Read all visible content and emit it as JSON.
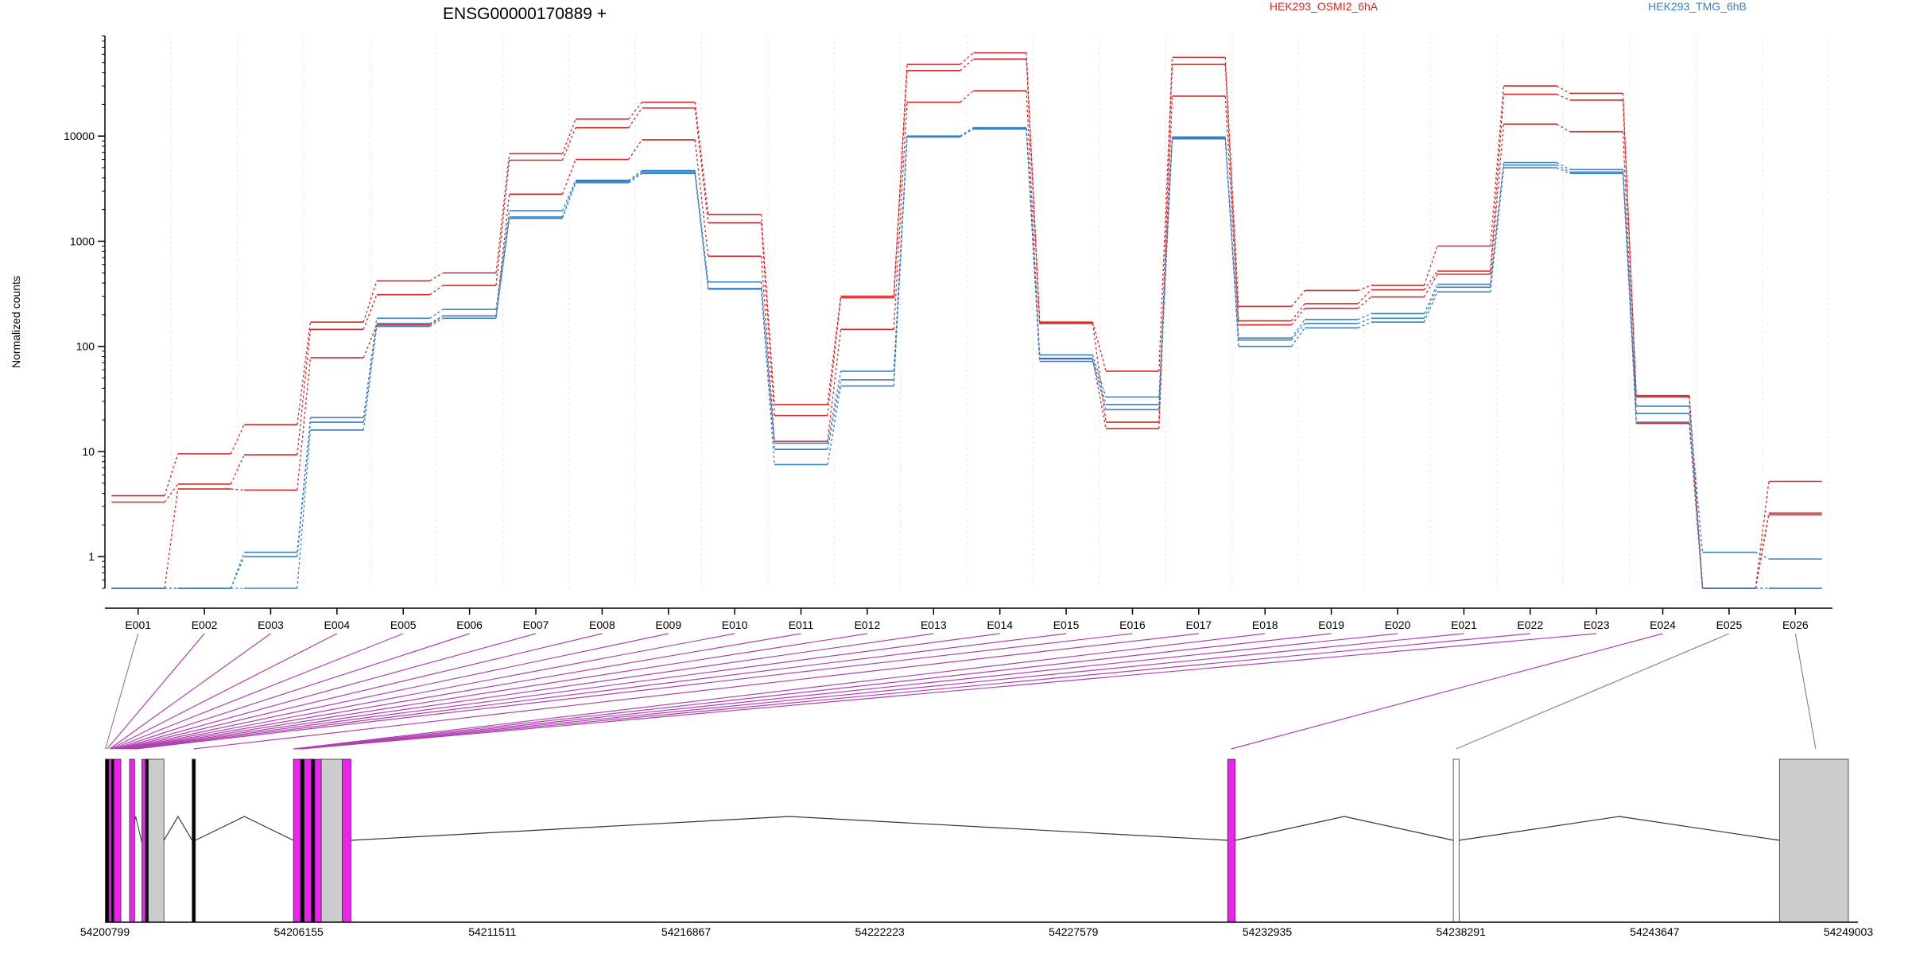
{
  "chart_data": {
    "type": "line",
    "title": "ENSG00000170889 +",
    "ylabel": "Normalized counts",
    "yscale": "log",
    "ylim": [
      0.5,
      90000
    ],
    "y_ticks": [
      1,
      10,
      100,
      1000,
      10000
    ],
    "y_tick_labels": [
      "1",
      "10",
      "100",
      "1000",
      "10000"
    ],
    "categories": [
      "E001",
      "E002",
      "E003",
      "E004",
      "E005",
      "E006",
      "E007",
      "E008",
      "E009",
      "E010",
      "E011",
      "E012",
      "E013",
      "E014",
      "E015",
      "E016",
      "E017",
      "E018",
      "E019",
      "E020",
      "E021",
      "E022",
      "E023",
      "E024",
      "E025",
      "E026"
    ],
    "legend_entries": [
      {
        "name": "HEK293_OSMI2_6hA",
        "color": "#d62728"
      },
      {
        "name": "HEK293_TMG_6hB",
        "color": "#3a7fc0"
      }
    ],
    "series": [
      {
        "group": "osmi",
        "color": "#d62728",
        "values": [
          3.8,
          9.5,
          18,
          170,
          420,
          500,
          6800,
          14500,
          21000,
          1800,
          28,
          300,
          48000,
          62000,
          170,
          58,
          56000,
          240,
          340,
          380,
          900,
          30000,
          25500,
          34,
          0.5,
          5.2
        ]
      },
      {
        "group": "osmi",
        "color": "#d62728",
        "values": [
          3.3,
          4.9,
          9.3,
          145,
          310,
          380,
          5900,
          12000,
          18500,
          1500,
          22,
          290,
          42000,
          54000,
          165,
          19,
          48000,
          175,
          255,
          345,
          520,
          25000,
          22000,
          33,
          0.5,
          2.6
        ]
      },
      {
        "group": "osmi",
        "color": "#d62728",
        "values": [
          0.5,
          4.4,
          4.3,
          78,
          160,
          195,
          2800,
          6000,
          9200,
          720,
          12.5,
          145,
          21000,
          27000,
          76,
          16.5,
          24000,
          160,
          230,
          295,
          485,
          13000,
          11000,
          18.5,
          0.5,
          2.5
        ]
      },
      {
        "group": "tmg",
        "color": "#3a7fc0",
        "values": [
          0.5,
          0.5,
          1.1,
          21,
          185,
          225,
          1950,
          3800,
          4700,
          410,
          12,
          58,
          10000,
          12000,
          83,
          33,
          9800,
          120,
          180,
          205,
          390,
          5600,
          4800,
          27,
          1.1,
          0.95
        ]
      },
      {
        "group": "tmg",
        "color": "#3a7fc0",
        "values": [
          0.5,
          0.5,
          1.0,
          19,
          165,
          195,
          1700,
          3700,
          4550,
          355,
          10.5,
          48,
          9900,
          11800,
          77,
          28,
          9600,
          115,
          165,
          185,
          365,
          5300,
          4550,
          23,
          0.5,
          0.5
        ]
      },
      {
        "group": "tmg",
        "color": "#3a7fc0",
        "values": [
          0.5,
          0.5,
          0.5,
          16,
          155,
          185,
          1650,
          3600,
          4400,
          350,
          7.5,
          42,
          9800,
          11700,
          72,
          25,
          9400,
          100,
          150,
          170,
          330,
          5000,
          4400,
          19,
          0.5,
          0.5
        ]
      }
    ],
    "gene_model": {
      "coordinate_labels": [
        "54200799",
        "54206155",
        "54211511",
        "54216867",
        "54222223",
        "54227579",
        "54232935",
        "54238291",
        "54243647",
        "54249003"
      ],
      "coordinate_range": [
        54200799,
        54249003
      ],
      "exons": [
        {
          "start": 54200810,
          "end": 54200910,
          "color": "#000000"
        },
        {
          "start": 54200910,
          "end": 54200980,
          "color": "#ee22ee"
        },
        {
          "start": 54200980,
          "end": 54201040,
          "color": "#000000"
        },
        {
          "start": 54201050,
          "end": 54201240,
          "color": "#ee22ee"
        },
        {
          "start": 54201480,
          "end": 54201620,
          "color": "#ee22ee"
        },
        {
          "start": 54201820,
          "end": 54201920,
          "color": "#ee22ee"
        },
        {
          "start": 54201920,
          "end": 54202000,
          "color": "#000000"
        },
        {
          "start": 54202000,
          "end": 54202430,
          "color": "#cccccc"
        },
        {
          "start": 54203210,
          "end": 54203300,
          "color": "#000000"
        },
        {
          "start": 54206010,
          "end": 54206210,
          "color": "#ee22ee"
        },
        {
          "start": 54206210,
          "end": 54206310,
          "color": "#000000"
        },
        {
          "start": 54206310,
          "end": 54206500,
          "color": "#ee22ee"
        },
        {
          "start": 54206500,
          "end": 54206600,
          "color": "#000000"
        },
        {
          "start": 54206600,
          "end": 54206780,
          "color": "#ee22ee"
        },
        {
          "start": 54206780,
          "end": 54207360,
          "color": "#cccccc"
        },
        {
          "start": 54207360,
          "end": 54207600,
          "color": "#ee22ee"
        },
        {
          "start": 54231840,
          "end": 54232050,
          "color": "#ee22ee"
        },
        {
          "start": 54238080,
          "end": 54238240,
          "color": "#ffffff"
        },
        {
          "start": 54247100,
          "end": 54249003,
          "color": "#cccccc"
        }
      ],
      "introns": [
        [
          54202430,
          54203210
        ],
        [
          54203300,
          54206010
        ],
        [
          54207600,
          54231840
        ],
        [
          54232050,
          54238080
        ],
        [
          54238240,
          54247100
        ]
      ],
      "exon_links": [
        {
          "exon": "E001",
          "genomic": 54200810,
          "color": "#888888"
        },
        {
          "exon": "E002",
          "genomic": 54200860,
          "color": "#b040b0"
        },
        {
          "exon": "E003",
          "genomic": 54200930,
          "color": "#b040b0"
        },
        {
          "exon": "E004",
          "genomic": 54200960,
          "color": "#b040b0"
        },
        {
          "exon": "E005",
          "genomic": 54201000,
          "color": "#b040b0"
        },
        {
          "exon": "E006",
          "genomic": 54201060,
          "color": "#b040b0"
        },
        {
          "exon": "E007",
          "genomic": 54201120,
          "color": "#b040b0"
        },
        {
          "exon": "E008",
          "genomic": 54201180,
          "color": "#b040b0"
        },
        {
          "exon": "E009",
          "genomic": 54201240,
          "color": "#b040b0"
        },
        {
          "exon": "E010",
          "genomic": 54201300,
          "color": "#b040b0"
        },
        {
          "exon": "E011",
          "genomic": 54201360,
          "color": "#b040b0"
        },
        {
          "exon": "E012",
          "genomic": 54201420,
          "color": "#b040b0"
        },
        {
          "exon": "E013",
          "genomic": 54201480,
          "color": "#b040b0"
        },
        {
          "exon": "E014",
          "genomic": 54201540,
          "color": "#b040b0"
        },
        {
          "exon": "E015",
          "genomic": 54201600,
          "color": "#b040b0"
        },
        {
          "exon": "E016",
          "genomic": 54201660,
          "color": "#b040b0"
        },
        {
          "exon": "E017",
          "genomic": 54203250,
          "color": "#b040b0"
        },
        {
          "exon": "E018",
          "genomic": 54206010,
          "color": "#b040b0"
        },
        {
          "exon": "E019",
          "genomic": 54206060,
          "color": "#b040b0"
        },
        {
          "exon": "E020",
          "genomic": 54206110,
          "color": "#b040b0"
        },
        {
          "exon": "E021",
          "genomic": 54206160,
          "color": "#b040b0"
        },
        {
          "exon": "E022",
          "genomic": 54206210,
          "color": "#b040b0"
        },
        {
          "exon": "E023",
          "genomic": 54206260,
          "color": "#b040b0"
        },
        {
          "exon": "E024",
          "genomic": 54231940,
          "color": "#b040b0"
        },
        {
          "exon": "E025",
          "genomic": 54238160,
          "color": "#888888"
        },
        {
          "exon": "E026",
          "genomic": 54248100,
          "color": "#888888"
        }
      ]
    }
  }
}
